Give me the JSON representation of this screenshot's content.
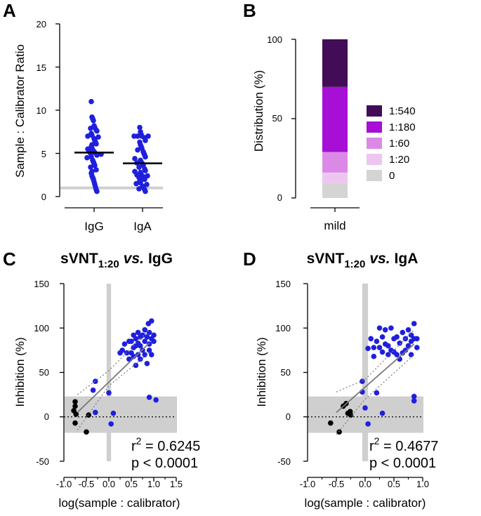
{
  "colors": {
    "point_blue": "#1f1fdd",
    "point_black": "#000000",
    "ref_gray": "#cfcfcf",
    "fit_line": "#7a7a7a"
  },
  "panel_a": {
    "letter": "A",
    "ylabel": "Sample : Calibrator Ratio",
    "yticks": [
      "0",
      "5",
      "10",
      "15",
      "20"
    ],
    "categories": [
      "IgG",
      "IgA"
    ]
  },
  "panel_b": {
    "letter": "B",
    "ylabel": "Distribution (%)",
    "yticks": [
      "0",
      "50",
      "100"
    ],
    "categories": [
      "mild"
    ],
    "legend": [
      "1:540",
      "1:180",
      "1:60",
      "1:20",
      "0"
    ]
  },
  "panel_c": {
    "letter": "C",
    "title_pre": "sVNT",
    "title_sub": "1:20",
    "title_vs": "vs.",
    "title_post": "IgG",
    "ylabel": "Inhibition  (%)",
    "xlabel": "log(sample : calibrator)",
    "xticks": [
      "-1.0",
      "-0.5",
      "0.0",
      "0.5",
      "1.0",
      "1.5"
    ],
    "yticks": [
      "-50",
      "0",
      "50",
      "100",
      "150"
    ],
    "r2_label": "r",
    "r2_sup": "2",
    "r2_value": " = 0.6245",
    "p_text": "p < 0.0001"
  },
  "panel_d": {
    "letter": "D",
    "title_pre": "sVNT",
    "title_sub": "1:20",
    "title_vs": "vs.",
    "title_post": "IgA",
    "ylabel": "Inhibition  (%)",
    "xlabel": "log(sample : calibrator)",
    "xticks": [
      "-1.0",
      "-0.5",
      "0.0",
      "0.5",
      "1.0"
    ],
    "yticks": [
      "-50",
      "0",
      "50",
      "100",
      "150"
    ],
    "r2_label": "r",
    "r2_sup": "2",
    "r2_value": " = 0.4677",
    "p_text": "p < 0.0001"
  },
  "chart_data": [
    {
      "panel": "A",
      "type": "scatter",
      "ylabel": "Sample : Calibrator Ratio",
      "ylim": [
        0,
        20
      ],
      "yticks": [
        0,
        5,
        10,
        15,
        20
      ],
      "categories": [
        "IgG",
        "IgA"
      ],
      "reference_line": 1,
      "series": [
        {
          "name": "IgG",
          "median": 5.1,
          "color": "#1f1fdd",
          "values": [
            11,
            9.2,
            9,
            8.8,
            8.2,
            8,
            7.9,
            7.7,
            7.6,
            7.3,
            7.1,
            7,
            6.9,
            6.7,
            6.5,
            6.3,
            6.1,
            6,
            5.8,
            5.6,
            5.5,
            5.3,
            5.2,
            5.1,
            5,
            4.9,
            4.8,
            4.6,
            4.5,
            4.2,
            4,
            3.8,
            3.6,
            3.4,
            3.1,
            2.9,
            2.7,
            2.4,
            2.2,
            2,
            1.7,
            1.4,
            1.1,
            0.8,
            0.6
          ]
        },
        {
          "name": "IgA",
          "median": 3.85,
          "color": "#1f1fdd",
          "values": [
            8,
            7.5,
            7.2,
            7,
            7,
            7,
            7,
            6.8,
            6.5,
            6.3,
            6,
            5.8,
            5.6,
            5.4,
            5.2,
            5,
            4.8,
            4.6,
            4.4,
            4.2,
            4,
            3.9,
            3.8,
            3.6,
            3.4,
            3.2,
            3,
            2.9,
            2.8,
            2.6,
            2.5,
            2.4,
            2.3,
            2.2,
            2,
            1.9,
            1.8,
            1.6,
            1.5,
            1.4,
            1.2,
            1.1,
            0.9,
            0.8,
            0.6
          ]
        }
      ]
    },
    {
      "panel": "B",
      "type": "bar",
      "stacked": true,
      "ylabel": "Distribution (%)",
      "ylim": [
        0,
        100
      ],
      "yticks": [
        0,
        50,
        100
      ],
      "categories": [
        "mild"
      ],
      "series": [
        {
          "name": "0",
          "color": "#d4d4d4",
          "values": [
            9
          ]
        },
        {
          "name": "1:20",
          "color": "#edc6f0",
          "values": [
            7
          ]
        },
        {
          "name": "1:60",
          "color": "#da8ae6",
          "values": [
            13
          ]
        },
        {
          "name": "1:180",
          "color": "#a70ed6",
          "values": [
            41
          ]
        },
        {
          "name": "1:540",
          "color": "#420c57",
          "values": [
            30
          ]
        }
      ]
    },
    {
      "panel": "C",
      "type": "scatter",
      "title": "sVNT1:20 vs. IgG",
      "xlabel": "log(sample : calibrator)",
      "ylabel": "Inhibition (%)",
      "xlim": [
        -1.0,
        1.5
      ],
      "ylim": [
        -50,
        150
      ],
      "xticks": [
        -1.0,
        -0.5,
        0.0,
        0.5,
        1.0,
        1.5
      ],
      "yticks": [
        -50,
        0,
        50,
        100,
        150
      ],
      "shaded_x_band": [
        -0.05,
        0.05
      ],
      "shaded_y_band": [
        -18,
        23
      ],
      "fit": {
        "x1": -0.7,
        "y1": 5,
        "x2": 0.9,
        "y2": 83
      },
      "ci_lower": [
        [
          -0.7,
          -15
        ],
        [
          0.0,
          35
        ],
        [
          0.9,
          72
        ]
      ],
      "ci_upper": [
        [
          -0.7,
          25
        ],
        [
          0.0,
          52
        ],
        [
          0.9,
          98
        ]
      ],
      "r2": 0.6245,
      "p": "< 0.0001",
      "series": [
        {
          "name": "negative",
          "color": "#000000",
          "points": [
            [
              -0.75,
              17
            ],
            [
              -0.75,
              12
            ],
            [
              -0.78,
              7
            ],
            [
              -0.73,
              3
            ],
            [
              -0.75,
              -7
            ],
            [
              -0.5,
              -17
            ],
            [
              -0.45,
              2
            ]
          ]
        },
        {
          "name": "positive",
          "color": "#1f1fdd",
          "points": [
            [
              -0.3,
              40
            ],
            [
              -0.35,
              30
            ],
            [
              -0.3,
              5
            ],
            [
              0.0,
              27
            ],
            [
              0.05,
              -8
            ],
            [
              0.1,
              4
            ],
            [
              0.9,
              22
            ],
            [
              1.05,
              19
            ],
            [
              0.25,
              72
            ],
            [
              0.3,
              75
            ],
            [
              0.35,
              82
            ],
            [
              0.4,
              72
            ],
            [
              0.45,
              65
            ],
            [
              0.5,
              85
            ],
            [
              0.55,
              78
            ],
            [
              0.55,
              92
            ],
            [
              0.6,
              88
            ],
            [
              0.6,
              58
            ],
            [
              0.65,
              95
            ],
            [
              0.65,
              70
            ],
            [
              0.7,
              80
            ],
            [
              0.7,
              65
            ],
            [
              0.75,
              75
            ],
            [
              0.8,
              85
            ],
            [
              0.8,
              98
            ],
            [
              0.85,
              90
            ],
            [
              0.85,
              60
            ],
            [
              0.88,
              105
            ],
            [
              0.9,
              82
            ],
            [
              0.9,
              75
            ],
            [
              0.95,
              108
            ],
            [
              0.95,
              88
            ],
            [
              0.95,
              70
            ],
            [
              1.0,
              92
            ],
            [
              1.0,
              85
            ],
            [
              0.75,
              92
            ],
            [
              0.45,
              85
            ],
            [
              0.55,
              68
            ],
            [
              0.7,
              90
            ],
            [
              0.8,
              70
            ],
            [
              0.65,
              83
            ],
            [
              0.5,
              72
            ],
            [
              0.9,
              95
            ],
            [
              0.6,
              80
            ]
          ]
        }
      ]
    },
    {
      "panel": "D",
      "type": "scatter",
      "title": "sVNT1:20 vs. IgA",
      "xlabel": "log(sample : calibrator)",
      "ylabel": "Inhibition (%)",
      "xlim": [
        -1.0,
        1.0
      ],
      "ylim": [
        -50,
        150
      ],
      "xticks": [
        -1.0,
        -0.5,
        0.0,
        0.5,
        1.0
      ],
      "yticks": [
        -50,
        0,
        50,
        100,
        150
      ],
      "shaded_x_band": [
        -0.05,
        0.05
      ],
      "shaded_y_band": [
        -18,
        23
      ],
      "fit": {
        "x1": -0.5,
        "y1": 5,
        "x2": 0.85,
        "y2": 82
      },
      "ci_lower": [
        [
          -0.5,
          -20
        ],
        [
          0.0,
          20
        ],
        [
          0.85,
          70
        ]
      ],
      "ci_upper": [
        [
          -0.5,
          28
        ],
        [
          0.0,
          42
        ],
        [
          0.85,
          98
        ]
      ],
      "r2": 0.4677,
      "p": "< 0.0001",
      "series": [
        {
          "name": "negative",
          "color": "#000000",
          "points": [
            [
              -0.6,
              -7
            ],
            [
              -0.45,
              -17
            ],
            [
              -0.38,
              12
            ],
            [
              -0.33,
              15
            ],
            [
              -0.3,
              4
            ],
            [
              -0.26,
              6
            ],
            [
              -0.25,
              2
            ]
          ]
        },
        {
          "name": "positive",
          "color": "#1f1fdd",
          "points": [
            [
              -0.05,
              40
            ],
            [
              -0.05,
              28
            ],
            [
              0.0,
              10
            ],
            [
              0.05,
              -8
            ],
            [
              0.05,
              77
            ],
            [
              0.1,
              88
            ],
            [
              0.15,
              78
            ],
            [
              0.2,
              85
            ],
            [
              0.25,
              100
            ],
            [
              0.3,
              73
            ],
            [
              0.35,
              98
            ],
            [
              0.4,
              80
            ],
            [
              0.45,
              100
            ],
            [
              0.5,
              88
            ],
            [
              0.55,
              70
            ],
            [
              0.6,
              83
            ],
            [
              0.65,
              72
            ],
            [
              0.7,
              75
            ],
            [
              0.75,
              98
            ],
            [
              0.8,
              92
            ],
            [
              0.8,
              70
            ],
            [
              0.85,
              105
            ],
            [
              0.85,
              88
            ],
            [
              0.9,
              88
            ],
            [
              0.85,
              23
            ],
            [
              0.85,
              18
            ],
            [
              0.2,
              27
            ],
            [
              0.3,
              4
            ],
            [
              0.25,
              78
            ],
            [
              0.35,
              82
            ],
            [
              0.5,
              73
            ],
            [
              0.55,
              90
            ],
            [
              0.6,
              65
            ],
            [
              0.7,
              88
            ],
            [
              0.75,
              80
            ],
            [
              0.65,
              95
            ],
            [
              0.4,
              70
            ],
            [
              0.45,
              75
            ],
            [
              0.15,
              68
            ],
            [
              0.9,
              78
            ],
            [
              0.8,
              85
            ],
            [
              0.3,
              90
            ]
          ]
        }
      ]
    }
  ]
}
